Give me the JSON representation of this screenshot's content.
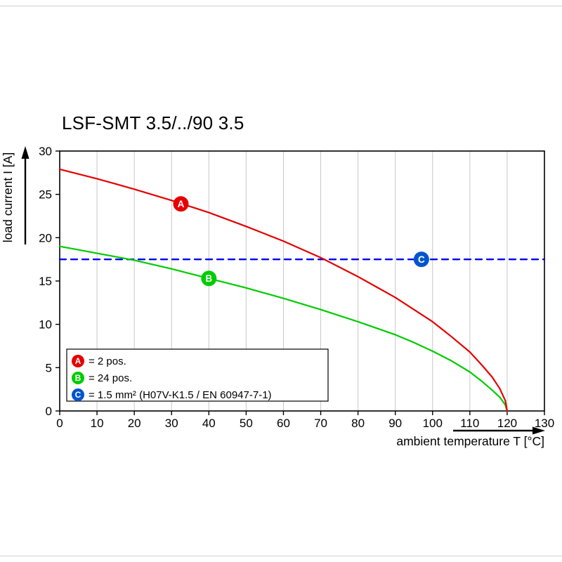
{
  "page": {
    "background": "#ffffff"
  },
  "chart_data": {
    "type": "line",
    "title": "LSF-SMT 3.5/../90 3.5",
    "xlabel": "ambient temperature T [°C]",
    "ylabel": "load current I [A]",
    "xlim": [
      0,
      130
    ],
    "ylim": [
      0,
      30
    ],
    "xticks": [
      0,
      10,
      20,
      30,
      40,
      50,
      60,
      70,
      80,
      90,
      100,
      110,
      120,
      130
    ],
    "yticks": [
      0,
      5,
      10,
      15,
      20,
      25,
      30
    ],
    "grid": "vertical-only",
    "gridline_color": "#c8c8c8",
    "frame_color": "#000000",
    "legend_position": "lower-left",
    "series": [
      {
        "name": "A",
        "legend_text": "= 2 pos.",
        "color": "#e60000",
        "marker_color": "#e60000",
        "style": "solid",
        "x": [
          0,
          5,
          10,
          15,
          20,
          25,
          30,
          35,
          40,
          45,
          50,
          55,
          60,
          65,
          70,
          75,
          80,
          85,
          90,
          95,
          100,
          105,
          110,
          113,
          116,
          118,
          119.5,
          120
        ],
        "y": [
          27.9,
          27.35,
          26.8,
          26.2,
          25.6,
          24.95,
          24.3,
          23.6,
          22.9,
          22.1,
          21.3,
          20.45,
          19.6,
          18.65,
          17.7,
          16.6,
          15.5,
          14.3,
          13.1,
          11.7,
          10.3,
          8.6,
          6.8,
          5.4,
          3.9,
          2.6,
          1.2,
          0
        ],
        "marker": {
          "letter": "A",
          "x": 32.5,
          "y": 23.9
        }
      },
      {
        "name": "B",
        "legend_text": "= 24 pos.",
        "color": "#00cc00",
        "marker_color": "#00cc00",
        "style": "solid",
        "x": [
          0,
          5,
          10,
          15,
          20,
          25,
          30,
          35,
          40,
          45,
          50,
          55,
          60,
          65,
          70,
          75,
          80,
          85,
          90,
          95,
          100,
          105,
          110,
          113,
          116,
          118,
          119.5,
          120
        ],
        "y": [
          19.0,
          18.6,
          18.2,
          17.8,
          17.4,
          16.9,
          16.4,
          15.85,
          15.3,
          14.75,
          14.2,
          13.6,
          13.0,
          12.35,
          11.7,
          11.0,
          10.3,
          9.55,
          8.8,
          7.9,
          6.9,
          5.8,
          4.5,
          3.5,
          2.4,
          1.6,
          0.7,
          0
        ],
        "marker": {
          "letter": "B",
          "x": 40,
          "y": 15.3
        }
      },
      {
        "name": "C",
        "legend_text": "= 1.5 mm² (H07V-K1.5 / EN 60947-7-1)",
        "color": "#0000f0",
        "marker_color": "#0055cc",
        "style": "dashed",
        "x": [
          0,
          130
        ],
        "y": [
          17.5,
          17.5
        ],
        "marker": {
          "letter": "C",
          "x": 97,
          "y": 17.5
        }
      }
    ]
  }
}
